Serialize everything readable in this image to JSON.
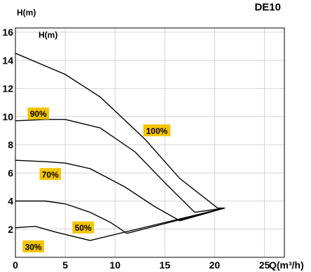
{
  "chart_data": {
    "type": "line",
    "title": "DE10",
    "ylabel": "H(m)",
    "inner_ylabel": "H(m)",
    "xlabel": "Q(m³/h)",
    "xlim": [
      0,
      27
    ],
    "ylim": [
      0,
      16.3
    ],
    "xticks": [
      0,
      5,
      10,
      15,
      20,
      25
    ],
    "yticks": [
      2,
      4,
      6,
      8,
      10,
      12,
      14,
      16
    ],
    "x_tick_labels": [
      "0",
      "5",
      "10",
      "15",
      "20",
      "25"
    ],
    "y_tick_labels": [
      "2",
      "4",
      "6",
      "8",
      "10",
      "12",
      "14",
      "16"
    ],
    "grid": true,
    "series": [
      {
        "name": "100%",
        "points": [
          [
            0,
            14.5
          ],
          [
            5,
            13.0
          ],
          [
            8.5,
            11.4
          ],
          [
            13,
            8.4
          ],
          [
            16.5,
            5.6
          ],
          [
            20.3,
            3.5
          ],
          [
            21,
            3.5
          ]
        ]
      },
      {
        "name": "90%",
        "points": [
          [
            0,
            9.7
          ],
          [
            3,
            9.8
          ],
          [
            5,
            9.8
          ],
          [
            8.5,
            9.2
          ],
          [
            12,
            7.5
          ],
          [
            15,
            5.3
          ],
          [
            18,
            3.2
          ],
          [
            21,
            3.5
          ]
        ]
      },
      {
        "name": "70%",
        "points": [
          [
            0,
            6.9
          ],
          [
            3,
            6.8
          ],
          [
            5,
            6.7
          ],
          [
            7.5,
            6.3
          ],
          [
            11,
            5.0
          ],
          [
            14,
            3.6
          ],
          [
            16.5,
            2.6
          ],
          [
            21,
            3.5
          ]
        ]
      },
      {
        "name": "50%",
        "points": [
          [
            0,
            4.0
          ],
          [
            3,
            4.0
          ],
          [
            5,
            3.8
          ],
          [
            7.5,
            3.2
          ],
          [
            9.5,
            2.5
          ],
          [
            11.2,
            1.7
          ],
          [
            21,
            3.5
          ]
        ]
      },
      {
        "name": "30%",
        "points": [
          [
            0,
            2.1
          ],
          [
            2,
            2.2
          ],
          [
            4,
            1.8
          ],
          [
            7.5,
            1.2
          ],
          [
            21,
            3.5
          ]
        ]
      }
    ],
    "curve_labels": [
      {
        "text": "100%",
        "x": 14.2,
        "y": 9.0
      },
      {
        "text": "90%",
        "x": 2.3,
        "y": 10.2
      },
      {
        "text": "70%",
        "x": 3.5,
        "y": 5.9
      },
      {
        "text": "50%",
        "x": 6.8,
        "y": 2.1
      },
      {
        "text": "30%",
        "x": 1.8,
        "y": 0.75
      }
    ],
    "label_color": "#f5c400",
    "line_color": "#000000",
    "grid_color": "#c8c8c8"
  }
}
